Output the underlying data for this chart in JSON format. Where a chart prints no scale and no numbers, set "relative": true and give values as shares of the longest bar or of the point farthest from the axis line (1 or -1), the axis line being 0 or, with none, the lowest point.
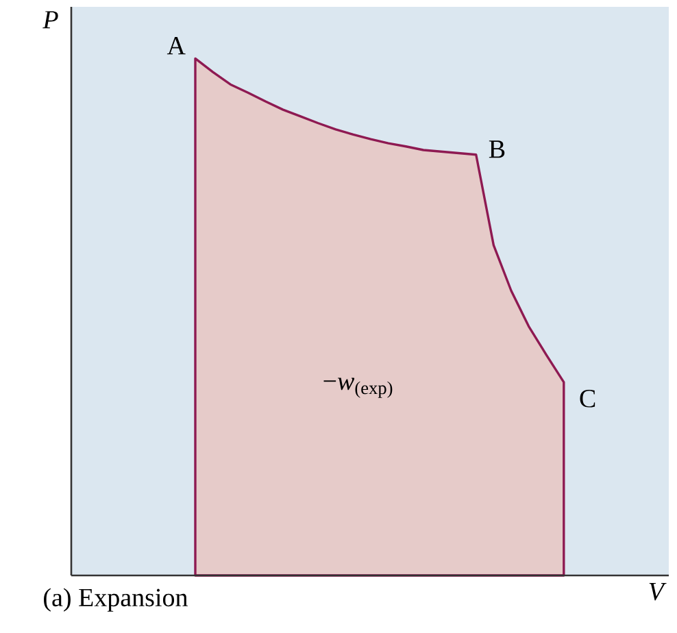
{
  "chart_data": {
    "type": "area",
    "relative": true,
    "xlabel": "V",
    "categories": [
      null,
      null,
      null,
      null,
      null,
      null,
      null,
      null,
      null,
      null,
      null,
      null,
      null,
      null,
      null,
      null,
      null,
      null,
      null,
      null,
      null,
      null
    ],
    "series": [
      {
        "color": "#8e1a52",
        "values": [
          1,
          0.974,
          0.95,
          0.934,
          0.917,
          0.901,
          0.888,
          0.875,
          0.863,
          0.853,
          0.844,
          0.836,
          0.83,
          0.823,
          0.82,
          0.817,
          0.814,
          0.639,
          0.551,
          0.482,
          0.427,
          0.374
        ]
      }
    ],
    "annotations": [
      "P",
      "A",
      "B",
      "C",
      "−*w*$_{(exp)}$",
      "(a) Expansion"
    ]
  }
}
